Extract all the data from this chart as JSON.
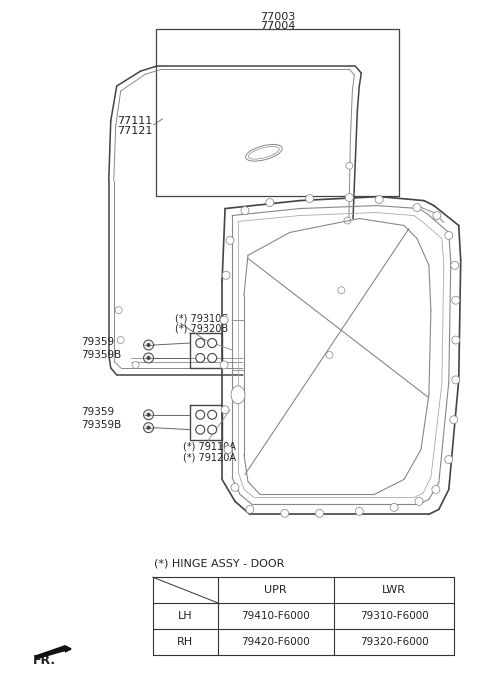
{
  "bg_color": "#ffffff",
  "line_color": "#444444",
  "line_color_light": "#888888",
  "part_numbers_top": [
    "77003",
    "77004"
  ],
  "part_numbers_left": [
    "77111",
    "77121"
  ],
  "label_79310C": "(*) 79310C",
  "label_79320B": "(*) 79320B",
  "label_79359_upper": "79359",
  "label_79359B_upper": "79359B",
  "label_79359_lower": "79359",
  "label_79359B_lower": "79359B",
  "label_79110A": "(*) 79110A",
  "label_79120A": "(*) 79120A",
  "hinge_label": "(*) HINGE ASSY - DOOR",
  "table_col1_header": "UPR",
  "table_col2_header": "LWR",
  "table_row1_label": "LH",
  "table_row2_label": "RH",
  "table_r1c1": "79410-F6000",
  "table_r1c2": "79310-F6000",
  "table_r2c1": "79420-F6000",
  "table_r2c2": "79320-F6000",
  "fr_label": "FR."
}
